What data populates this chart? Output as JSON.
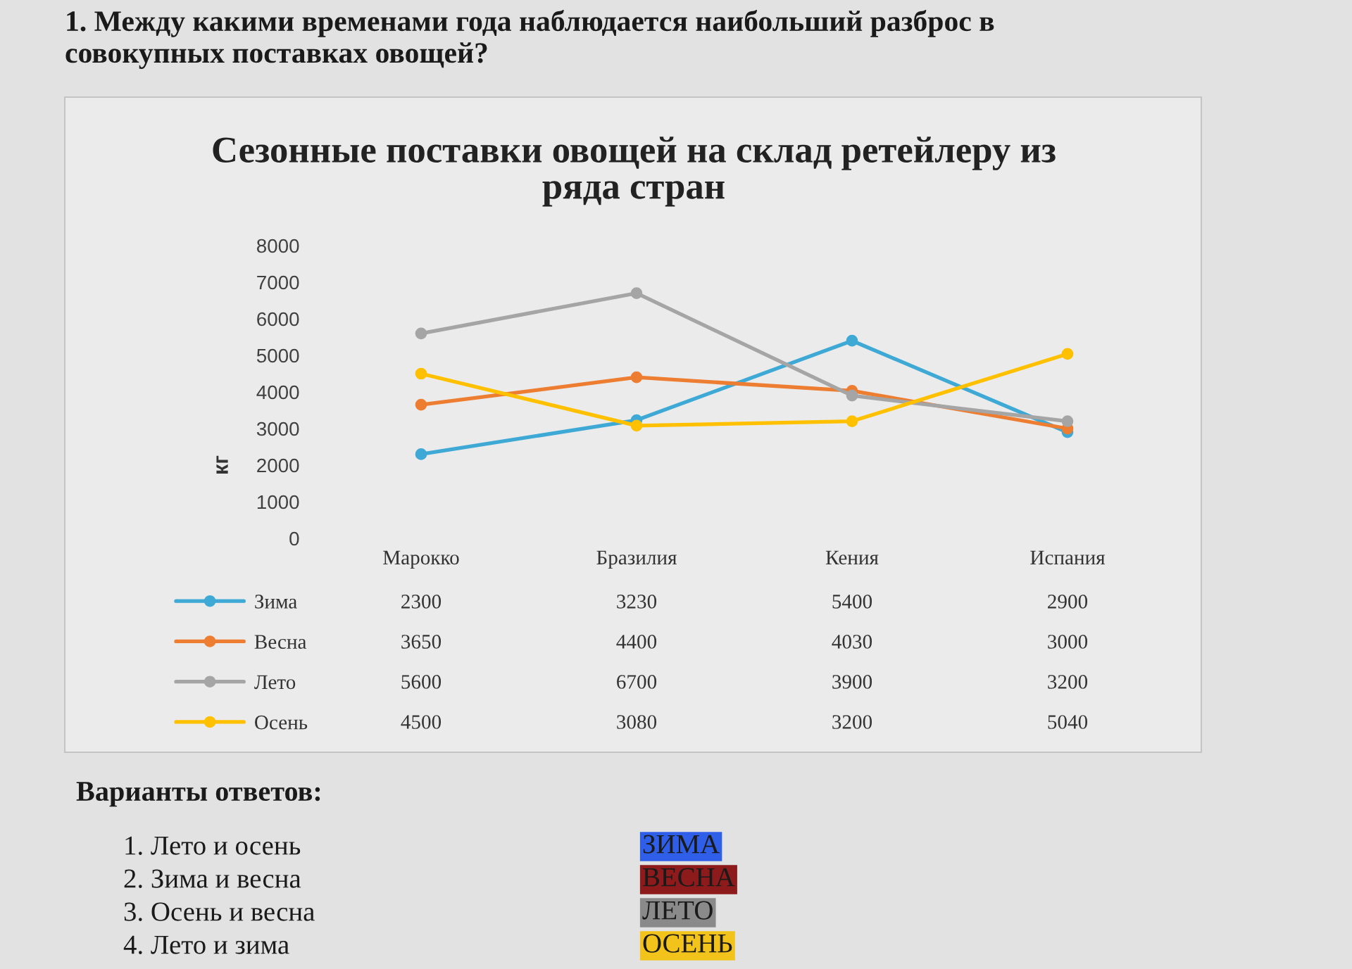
{
  "chart_data": {
    "type": "line",
    "title": "Сезонные поставки овощей на склад ретейлеру из ряда стран",
    "ylabel": "кг",
    "categories": [
      "Марокко",
      "Бразилия",
      "Кения",
      "Испания"
    ],
    "series": [
      {
        "name": "Зима",
        "color": "#3fa9d6",
        "values": [
          2300,
          3230,
          5400,
          2900
        ]
      },
      {
        "name": "Весна",
        "color": "#ed7d31",
        "values": [
          3650,
          4400,
          4030,
          3000
        ]
      },
      {
        "name": "Лето",
        "color": "#a5a5a5",
        "values": [
          5600,
          6700,
          3900,
          3200
        ]
      },
      {
        "name": "Осень",
        "color": "#ffc000",
        "values": [
          4500,
          3080,
          3200,
          5040
        ]
      }
    ],
    "ylim": [
      0,
      8000
    ],
    "yticks": [
      0,
      1000,
      2000,
      3000,
      4000,
      5000,
      6000,
      7000,
      8000
    ],
    "grid": false,
    "legend": "bottom left",
    "marker": "circle",
    "line_style": "solid",
    "data_labels": true,
    "annotations": [
      "1. Между какими временами года наблюдается наибольший разброс в совокупных поставках овощей?",
      "Варианты ответов:",
      "1. Лето и осень",
      "2. Зима и весна",
      "3. Осень и весна",
      "4. Лето и зима",
      "ЗИМА",
      "ВЕСНА",
      "ЛЕТО",
      "ОСЕНЬ"
    ]
  }
}
